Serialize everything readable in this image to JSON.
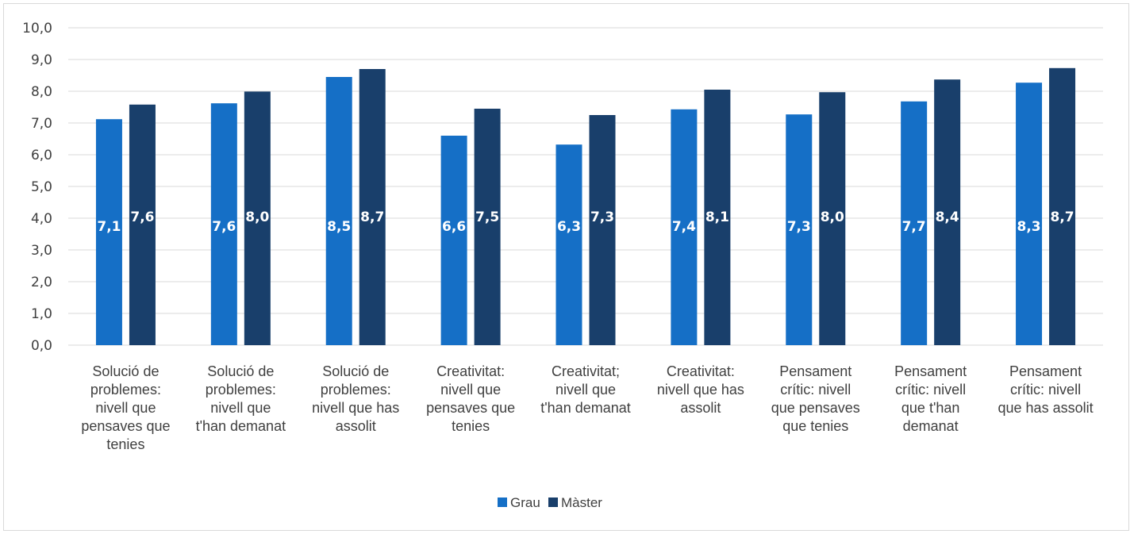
{
  "chart_data": {
    "type": "bar",
    "categories": [
      [
        "Solució de",
        "problemes:",
        "nivell que",
        "pensaves que",
        "tenies"
      ],
      [
        "Solució de",
        "problemes:",
        "nivell que",
        "t'han demanat"
      ],
      [
        "Solució de",
        "problemes:",
        "nivell que has",
        "assolit"
      ],
      [
        "Creativitat:",
        "nivell que",
        "pensaves que",
        "tenies"
      ],
      [
        "Creativitat;",
        "nivell que",
        "t'han demanat"
      ],
      [
        "Creativitat:",
        "nivell que has",
        "assolit"
      ],
      [
        "Pensament",
        "crític:  nivell",
        "que pensaves",
        "que tenies"
      ],
      [
        "Pensament",
        "crític:  nivell",
        "que t'han",
        "demanat"
      ],
      [
        "Pensament",
        "crític: nivell",
        "que has assolit"
      ]
    ],
    "series": [
      {
        "name": "Grau",
        "color": "#156fc6",
        "values": [
          7.12,
          7.62,
          8.45,
          6.6,
          6.32,
          7.43,
          7.27,
          7.68,
          8.27
        ],
        "labels": [
          "7,1",
          "7,6",
          "8,5",
          "6,6",
          "6,3",
          "7,4",
          "7,3",
          "7,7",
          "8,3"
        ]
      },
      {
        "name": "Màster",
        "color": "#193f6b",
        "values": [
          7.58,
          7.99,
          8.7,
          7.45,
          7.25,
          8.05,
          7.97,
          8.37,
          8.73
        ],
        "labels": [
          "7,6",
          "8,0",
          "8,7",
          "7,5",
          "7,3",
          "8,1",
          "8,0",
          "8,4",
          "8,7"
        ]
      }
    ],
    "ylim": [
      0,
      10
    ],
    "yticks": [
      "0,0",
      "1,0",
      "2,0",
      "3,0",
      "4,0",
      "5,0",
      "6,0",
      "7,0",
      "8,0",
      "9,0",
      "10,0"
    ],
    "grid": true,
    "legend_position": "bottom",
    "title": "",
    "xlabel": "",
    "ylabel": ""
  }
}
